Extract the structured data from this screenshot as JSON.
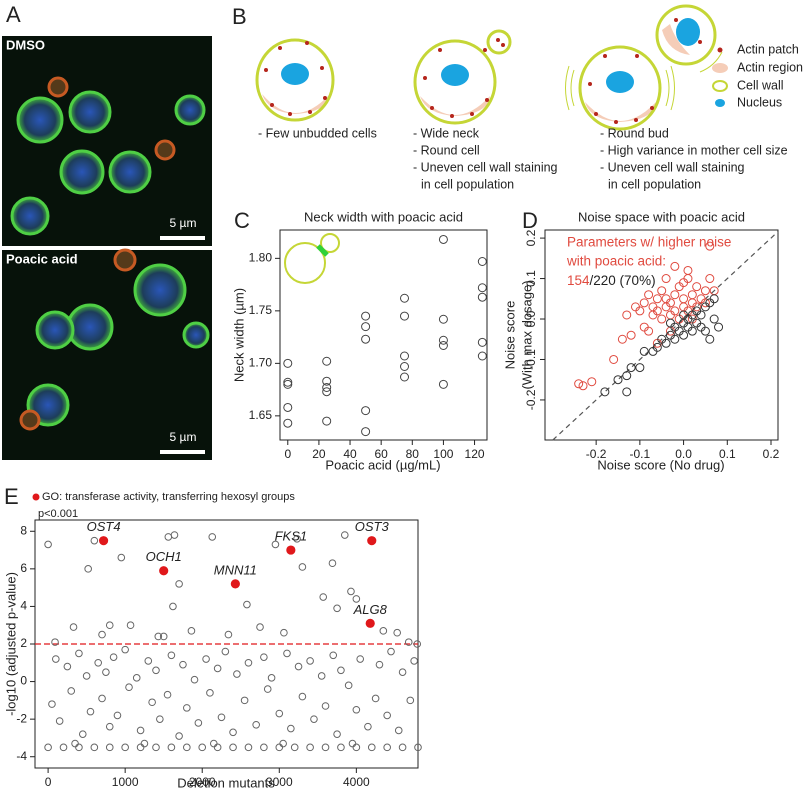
{
  "panel_labels": [
    "A",
    "B",
    "C",
    "D",
    "E"
  ],
  "panel_a": {
    "images": [
      {
        "label": "DMSO",
        "scale_bar": "5 µm"
      },
      {
        "label": "Poacic acid",
        "scale_bar": "5 µm"
      }
    ]
  },
  "panel_b": {
    "cells": [
      {
        "notes": [
          "- Few unbudded cells"
        ]
      },
      {
        "notes": [
          "- Wide neck",
          "- Round cell",
          "- Uneven cell wall staining",
          "in cell population"
        ]
      },
      {
        "notes": [
          "- Round bud",
          "- High variance in mother cell size",
          "- Uneven cell wall staining",
          "in cell population"
        ]
      }
    ],
    "legend": [
      "Actin patch",
      "Actin region",
      "Cell wall",
      "Nucleus"
    ]
  },
  "chart_data": [
    {
      "type": "scatter",
      "title": "Neck width with poacic acid",
      "xlabel": "Poacic acid (µg/mL)",
      "ylabel": "Neck width (µm)",
      "xlim": [
        -5,
        128
      ],
      "ylim": [
        1.627,
        1.827
      ],
      "xticks": [
        0,
        20,
        40,
        60,
        80,
        100,
        120
      ],
      "yticks": [
        1.65,
        {
          "value": 1.7,
          "label": "1.70"
        },
        1.75,
        {
          "value": 1.8,
          "label": "1.80"
        }
      ],
      "series": [
        {
          "color": "#444444",
          "marker": "open",
          "x": [
            0,
            0,
            0,
            0,
            0,
            25,
            25,
            25,
            25,
            25,
            50,
            50,
            50,
            50,
            50,
            75,
            75,
            75,
            75,
            75,
            100,
            100,
            100,
            100,
            100,
            125,
            125,
            125,
            125,
            125
          ],
          "y": [
            1.7,
            1.682,
            1.68,
            1.658,
            1.643,
            1.702,
            1.683,
            1.677,
            1.673,
            1.645,
            1.745,
            1.735,
            1.723,
            1.655,
            1.635,
            1.762,
            1.745,
            1.707,
            1.697,
            1.687,
            1.818,
            1.742,
            1.722,
            1.717,
            1.68,
            1.797,
            1.772,
            1.763,
            1.72,
            1.707
          ]
        }
      ]
    },
    {
      "type": "scatter",
      "title": "Noise space with poacic acid",
      "xlabel": "Noise score (No drug)",
      "ylabel": [
        "Noise score",
        "(With max dosage)"
      ],
      "xlim": [
        -0.317,
        0.216
      ],
      "ylim": [
        -0.299,
        0.22
      ],
      "xticks": [
        -0.2,
        -0.1,
        {
          "value": 0,
          "label": "0.0"
        },
        0.1,
        0.2
      ],
      "yticks": [
        -0.2,
        -0.1,
        {
          "value": 0,
          "label": "0.0"
        },
        0.1,
        0.2
      ],
      "identity_line": true,
      "annotation": [
        "Parameters w/ higher noise",
        "with poacic acid:"
      ],
      "annotation_count": [
        "154",
        "/220 (70%)"
      ],
      "series": [
        {
          "color": "#e04a3f",
          "marker": "open",
          "x": [
            -0.24,
            -0.23,
            -0.21,
            -0.16,
            -0.14,
            -0.13,
            -0.12,
            -0.11,
            -0.1,
            -0.09,
            -0.09,
            -0.08,
            -0.07,
            -0.07,
            -0.06,
            -0.06,
            -0.05,
            -0.05,
            -0.04,
            -0.04,
            -0.04,
            -0.03,
            -0.03,
            -0.02,
            -0.02,
            -0.01,
            -0.01,
            0.0,
            0.0,
            0.01,
            0.01,
            0.01,
            0.02,
            0.02,
            0.03,
            0.03,
            0.04,
            0.05,
            0.05,
            0.06,
            0.06,
            0.07,
            -0.02,
            0.0,
            -0.08,
            -0.06,
            -0.03,
            0.02
          ],
          "y": [
            -0.16,
            -0.165,
            -0.155,
            -0.1,
            -0.05,
            0.01,
            -0.04,
            0.03,
            0.02,
            -0.02,
            0.04,
            0.06,
            0.03,
            0.01,
            0.05,
            0.02,
            0.07,
            0.0,
            0.03,
            0.05,
            0.1,
            0.01,
            0.04,
            0.06,
            0.02,
            0.0,
            0.08,
            0.03,
            0.05,
            0.02,
            0.1,
            0.12,
            0.04,
            0.06,
            0.08,
            0.03,
            0.05,
            0.07,
            0.04,
            0.1,
            0.18,
            0.07,
            0.13,
            0.09,
            -0.03,
            -0.06,
            -0.03,
            0.0
          ]
        },
        {
          "color": "#333333",
          "marker": "open",
          "x": [
            -0.18,
            -0.15,
            -0.13,
            -0.13,
            -0.12,
            -0.1,
            -0.09,
            -0.07,
            -0.06,
            -0.05,
            -0.04,
            -0.03,
            -0.02,
            -0.02,
            -0.01,
            0.0,
            0.0,
            0.01,
            0.01,
            0.02,
            0.02,
            0.03,
            0.03,
            0.04,
            0.04,
            0.05,
            0.05,
            0.06,
            0.06,
            0.07,
            0.07,
            0.08,
            -0.03,
            0.0
          ],
          "y": [
            -0.18,
            -0.15,
            -0.18,
            -0.14,
            -0.12,
            -0.12,
            -0.08,
            -0.08,
            -0.07,
            -0.05,
            -0.06,
            -0.04,
            -0.05,
            -0.02,
            -0.03,
            -0.04,
            -0.01,
            -0.02,
            0.0,
            -0.03,
            0.01,
            -0.01,
            0.02,
            -0.02,
            0.01,
            0.03,
            -0.03,
            0.04,
            -0.05,
            0.05,
            0.0,
            -0.02,
            -0.01,
            0.01
          ]
        }
      ]
    },
    {
      "type": "scatter",
      "xlabel": "Deletion mutants",
      "ylabel": "-log10 (adjusted p-value)",
      "xlim": [
        -170,
        4800
      ],
      "ylim": [
        -4.6,
        8.6
      ],
      "xticks": [
        0,
        1000,
        2000,
        3000,
        4000
      ],
      "yticks": [
        -4,
        -2,
        0,
        2,
        4,
        6,
        8
      ],
      "threshold": 2,
      "threshold_color": "#e0181b",
      "legend_note": "p<0.001",
      "series": [
        {
          "color": "#666666",
          "marker": "open",
          "x": [
            0,
            330,
            520,
            600,
            950,
            1070,
            1430,
            1500,
            1560,
            1640,
            1700,
            1620,
            1860,
            2130,
            2340,
            2580,
            2750,
            2950,
            3060,
            3230,
            3300,
            3570,
            3690,
            3750,
            3850,
            3930,
            4000,
            4350,
            4530,
            4680,
            4790,
            90,
            700,
            800,
            100,
            250,
            400,
            500,
            650,
            750,
            850,
            1000,
            1150,
            1300,
            1400,
            1600,
            1750,
            1900,
            2050,
            2200,
            2300,
            2450,
            2600,
            2800,
            2900,
            3100,
            3250,
            3400,
            3550,
            3700,
            3800,
            4050,
            4300,
            4450,
            4600,
            4750,
            50,
            150,
            300,
            450,
            550,
            700,
            800,
            900,
            1050,
            1200,
            1350,
            1450,
            1550,
            1700,
            1800,
            1950,
            2100,
            2250,
            2400,
            2550,
            2700,
            2850,
            3000,
            3150,
            3300,
            3450,
            3600,
            3750,
            3900,
            4000,
            4150,
            4250,
            4400,
            4550,
            4700,
            0,
            200,
            400,
            600,
            800,
            1000,
            1200,
            1400,
            1600,
            1800,
            2000,
            2200,
            2400,
            2600,
            2800,
            3000,
            3200,
            3400,
            3600,
            3800,
            4000,
            4200,
            4400,
            4600,
            4800,
            350,
            1250,
            2150,
            3050,
            3950
          ],
          "y": [
            7.3,
            2.9,
            6.0,
            7.5,
            6.6,
            3.0,
            2.4,
            2.4,
            7.7,
            7.8,
            5.2,
            4.0,
            2.7,
            7.7,
            2.5,
            4.1,
            2.9,
            7.3,
            2.6,
            7.6,
            6.1,
            4.5,
            6.3,
            3.9,
            7.8,
            4.8,
            4.4,
            2.7,
            2.6,
            2.1,
            2.0,
            2.1,
            2.5,
            3.0,
            1.2,
            0.8,
            1.5,
            0.3,
            1.0,
            0.5,
            1.3,
            1.7,
            0.2,
            1.1,
            0.6,
            1.4,
            0.9,
            0.1,
            1.2,
            0.7,
            1.6,
            0.4,
            1.0,
            1.3,
            0.2,
            1.5,
            0.8,
            1.1,
            0.3,
            1.4,
            0.6,
            1.2,
            0.9,
            1.6,
            0.5,
            1.1,
            -1.2,
            -2.1,
            -0.5,
            -2.8,
            -1.6,
            -0.9,
            -2.4,
            -1.8,
            -0.3,
            -2.6,
            -1.1,
            -2.0,
            -0.7,
            -2.9,
            -1.4,
            -2.2,
            -0.6,
            -1.9,
            -2.7,
            -1.0,
            -2.3,
            -0.4,
            -1.7,
            -2.5,
            -0.8,
            -2.0,
            -1.3,
            -2.8,
            -0.2,
            -1.5,
            -2.4,
            -0.9,
            -1.8,
            -2.6,
            -1.0,
            -3.5,
            -3.5,
            -3.5,
            -3.5,
            -3.5,
            -3.5,
            -3.5,
            -3.5,
            -3.5,
            -3.5,
            -3.5,
            -3.5,
            -3.5,
            -3.5,
            -3.5,
            -3.5,
            -3.5,
            -3.5,
            -3.5,
            -3.5,
            -3.5,
            -3.5,
            -3.5,
            -3.5,
            -3.5,
            -3.3,
            -3.3,
            -3.3,
            -3.3,
            -3.3
          ]
        },
        {
          "name": "GO: transferase activity, transferring hexosyl groups",
          "color": "#e0181b",
          "marker": "filled",
          "labels": [
            "OST4",
            "OCH1",
            "MNN11",
            "FKS1",
            "OST3",
            "ALG8"
          ],
          "x": [
            720,
            1500,
            2430,
            3150,
            4200,
            4180
          ],
          "y": [
            7.5,
            5.9,
            5.2,
            7.0,
            7.5,
            3.1
          ]
        }
      ]
    }
  ]
}
